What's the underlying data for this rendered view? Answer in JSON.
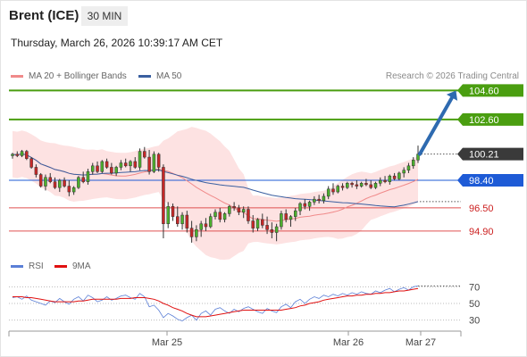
{
  "header": {
    "instrument": "Brent (ICE)",
    "timeframe": "30 MIN",
    "datetime": "Thursday, March 26, 2026 10:39:17 AM CET"
  },
  "legend": {
    "ma20_label": "MA 20 + Bollinger Bands",
    "ma50_label": "MA 50",
    "rsi_label": "RSI",
    "ma9_label": "9MA"
  },
  "credit": "Research © 2026 Trading Central",
  "colors": {
    "ma20": "#f08a8a",
    "ma50": "#3a5fa0",
    "bollinger_fill": "#fde2e2",
    "candle_up": "#4caf2e",
    "candle_down": "#c62828",
    "green_level": "#4a9e10",
    "blue_level": "#1e5bd6",
    "red_level": "#e05050",
    "price_label": "#3a3a3a",
    "arrow": "#2e6ab0",
    "rsi": "#5b7fd6",
    "rsi_ma": "#e01010"
  },
  "chart_data": [
    {
      "type": "candlestick",
      "title": "Brent (ICE) 30 MIN",
      "x_tick_labels": [
        "Mar 25",
        "Mar 26",
        "Mar 27"
      ],
      "ylim": [
        93.6,
        105.3
      ],
      "levels": [
        {
          "value": 104.6,
          "label": "104.60",
          "style": "green"
        },
        {
          "value": 102.6,
          "label": "102.60",
          "style": "green"
        },
        {
          "value": 100.21,
          "label": "100.21",
          "style": "last"
        },
        {
          "value": 98.4,
          "label": "98.40",
          "style": "blue"
        },
        {
          "value": 96.5,
          "label": "96.50",
          "style": "red"
        },
        {
          "value": 94.9,
          "label": "94.90",
          "style": "red"
        }
      ],
      "last_price": 100.21,
      "projection": {
        "from": 100.21,
        "to": 104.6,
        "direction": "up"
      },
      "series": [
        {
          "name": "MA 20 + Bollinger Bands",
          "kind": "ma"
        },
        {
          "name": "MA 50",
          "kind": "ma"
        }
      ],
      "candles": [
        [
          100.1,
          100.3,
          99.9,
          100.2
        ],
        [
          100.2,
          100.4,
          100.0,
          100.1
        ],
        [
          100.1,
          100.5,
          100.0,
          100.4
        ],
        [
          100.4,
          100.5,
          99.8,
          99.9
        ],
        [
          99.9,
          100.0,
          99.2,
          99.3
        ],
        [
          99.3,
          99.5,
          98.6,
          98.8
        ],
        [
          98.8,
          98.9,
          97.9,
          98.0
        ],
        [
          98.0,
          98.8,
          97.7,
          98.6
        ],
        [
          98.6,
          98.9,
          98.2,
          98.3
        ],
        [
          98.3,
          98.6,
          97.8,
          97.9
        ],
        [
          97.9,
          98.5,
          97.6,
          98.4
        ],
        [
          98.4,
          98.6,
          97.9,
          98.0
        ],
        [
          98.0,
          98.4,
          97.3,
          97.6
        ],
        [
          97.6,
          98.0,
          97.4,
          97.9
        ],
        [
          97.9,
          98.7,
          97.8,
          98.6
        ],
        [
          98.6,
          99.0,
          98.2,
          98.3
        ],
        [
          98.3,
          99.2,
          98.1,
          99.0
        ],
        [
          99.0,
          99.6,
          98.8,
          99.4
        ],
        [
          99.4,
          99.7,
          98.9,
          99.0
        ],
        [
          99.0,
          99.8,
          98.9,
          99.7
        ],
        [
          99.7,
          99.9,
          99.2,
          99.3
        ],
        [
          99.3,
          99.6,
          98.8,
          98.9
        ],
        [
          98.9,
          99.4,
          98.7,
          99.3
        ],
        [
          99.3,
          99.8,
          99.1,
          99.6
        ],
        [
          99.6,
          99.9,
          99.3,
          99.4
        ],
        [
          99.4,
          99.8,
          99.0,
          99.7
        ],
        [
          99.7,
          100.0,
          99.2,
          99.3
        ],
        [
          99.3,
          100.6,
          99.1,
          100.4
        ],
        [
          100.4,
          100.7,
          99.9,
          100.0
        ],
        [
          100.0,
          100.5,
          98.8,
          99.0
        ],
        [
          99.0,
          100.4,
          98.9,
          100.2
        ],
        [
          100.2,
          100.3,
          99.0,
          99.3
        ],
        [
          99.3,
          99.5,
          94.4,
          95.4
        ],
        [
          95.4,
          96.9,
          95.1,
          96.6
        ],
        [
          96.6,
          96.8,
          95.6,
          95.9
        ],
        [
          95.9,
          96.6,
          95.2,
          95.4
        ],
        [
          95.4,
          96.2,
          95.0,
          96.0
        ],
        [
          96.0,
          96.3,
          94.8,
          95.1
        ],
        [
          95.1,
          95.6,
          94.1,
          94.5
        ],
        [
          94.5,
          95.3,
          94.2,
          95.0
        ],
        [
          95.0,
          95.6,
          94.5,
          95.4
        ],
        [
          95.4,
          95.8,
          94.9,
          95.2
        ],
        [
          95.2,
          96.1,
          95.1,
          95.9
        ],
        [
          95.9,
          96.4,
          95.7,
          96.2
        ],
        [
          96.2,
          96.5,
          95.5,
          95.7
        ],
        [
          95.7,
          96.2,
          95.5,
          96.1
        ],
        [
          96.1,
          96.7,
          95.9,
          96.6
        ],
        [
          96.6,
          96.9,
          96.3,
          96.5
        ],
        [
          96.5,
          96.7,
          96.0,
          96.2
        ],
        [
          96.2,
          96.6,
          95.8,
          96.4
        ],
        [
          96.4,
          96.6,
          95.4,
          95.6
        ],
        [
          95.6,
          96.0,
          94.8,
          95.1
        ],
        [
          95.1,
          95.8,
          94.9,
          95.7
        ],
        [
          95.7,
          96.1,
          95.1,
          95.3
        ],
        [
          95.3,
          95.9,
          94.7,
          95.0
        ],
        [
          95.0,
          95.5,
          94.4,
          94.8
        ],
        [
          94.8,
          95.4,
          94.2,
          95.2
        ],
        [
          95.2,
          96.3,
          95.0,
          96.1
        ],
        [
          96.1,
          96.4,
          95.5,
          95.7
        ],
        [
          95.7,
          96.0,
          95.2,
          95.9
        ],
        [
          95.9,
          96.5,
          95.6,
          96.3
        ],
        [
          96.3,
          96.9,
          96.0,
          96.8
        ],
        [
          96.8,
          97.1,
          96.4,
          96.6
        ],
        [
          96.6,
          97.0,
          96.3,
          96.9
        ],
        [
          96.9,
          97.3,
          96.7,
          97.1
        ],
        [
          97.1,
          97.4,
          96.8,
          97.0
        ],
        [
          97.0,
          97.5,
          96.8,
          97.3
        ],
        [
          97.3,
          98.0,
          97.1,
          97.8
        ],
        [
          97.8,
          98.2,
          97.4,
          97.6
        ],
        [
          97.6,
          98.1,
          97.5,
          98.0
        ],
        [
          98.0,
          98.2,
          97.7,
          97.9
        ],
        [
          97.9,
          98.3,
          97.8,
          98.2
        ],
        [
          98.2,
          98.3,
          97.9,
          98.1
        ],
        [
          98.1,
          98.4,
          97.8,
          98.0
        ],
        [
          98.0,
          98.3,
          97.9,
          98.2
        ],
        [
          98.2,
          98.5,
          98.0,
          98.1
        ],
        [
          98.1,
          98.4,
          97.8,
          97.9
        ],
        [
          97.9,
          98.3,
          97.8,
          98.2
        ],
        [
          98.2,
          98.6,
          98.0,
          98.4
        ],
        [
          98.4,
          98.7,
          98.2,
          98.3
        ],
        [
          98.3,
          98.8,
          98.1,
          98.7
        ],
        [
          98.7,
          98.9,
          98.4,
          98.5
        ],
        [
          98.5,
          99.0,
          98.4,
          98.9
        ],
        [
          98.9,
          99.3,
          98.6,
          99.1
        ],
        [
          99.1,
          99.6,
          98.9,
          99.4
        ],
        [
          99.4,
          100.0,
          99.2,
          99.8
        ],
        [
          99.8,
          100.8,
          99.6,
          100.21
        ]
      ]
    },
    {
      "type": "line",
      "title": "RSI",
      "y_tick_labels": [
        "70",
        "50",
        "30"
      ],
      "ylim": [
        20,
        80
      ],
      "series": [
        {
          "name": "RSI",
          "values": [
            57,
            58,
            55,
            59,
            54,
            52,
            50,
            48,
            53,
            51,
            56,
            52,
            49,
            55,
            58,
            53,
            60,
            57,
            52,
            54,
            58,
            54,
            56,
            59,
            60,
            57,
            55,
            62,
            58,
            46,
            48,
            42,
            33,
            38,
            35,
            31,
            29,
            33,
            36,
            30,
            38,
            41,
            36,
            43,
            45,
            41,
            38,
            43,
            40,
            44,
            46,
            43,
            40,
            38,
            44,
            41,
            39,
            46,
            49,
            45,
            52,
            55,
            50,
            55,
            58,
            56,
            60,
            58,
            61,
            59,
            62,
            60,
            63,
            61,
            64,
            62,
            61,
            65,
            63,
            66,
            68,
            64,
            67,
            69,
            66,
            70,
            71
          ]
        },
        {
          "name": "9MA",
          "values": [
            58,
            58,
            58,
            57,
            57,
            56,
            55,
            54,
            53,
            52,
            52,
            52,
            52,
            52,
            53,
            53,
            54,
            55,
            55,
            55,
            55,
            55,
            55,
            56,
            56,
            56,
            57,
            57,
            57,
            56,
            55,
            53,
            50,
            48,
            45,
            43,
            41,
            38,
            36,
            34,
            34,
            34,
            35,
            36,
            37,
            38,
            39,
            40,
            41,
            42,
            42,
            42,
            42,
            42,
            42,
            42,
            42,
            42,
            43,
            44,
            45,
            47,
            48,
            50,
            51,
            52,
            54,
            55,
            56,
            57,
            58,
            59,
            59,
            60,
            60,
            61,
            61,
            62,
            62,
            63,
            63,
            64,
            65,
            65,
            66,
            67,
            68
          ]
        }
      ]
    }
  ]
}
